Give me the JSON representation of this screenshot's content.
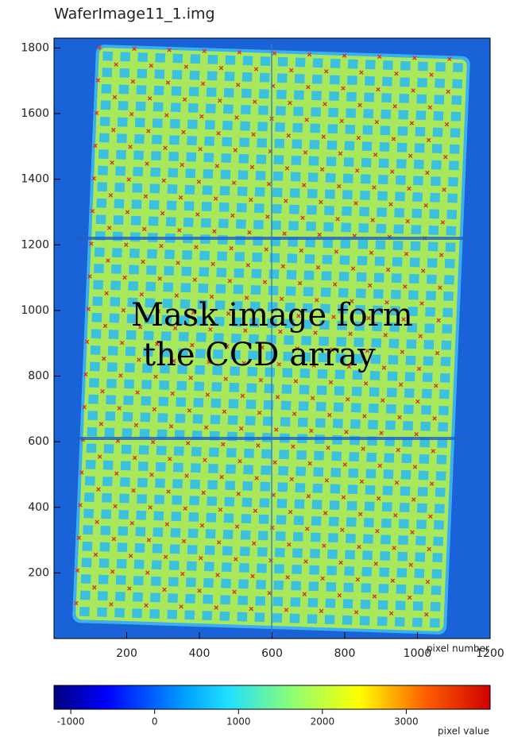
{
  "chart_data": {
    "type": "image",
    "title": "WaferImage11_1.img",
    "xlabel": "pixel number",
    "xlim": [
      0,
      1200
    ],
    "ylim": [
      0,
      1830
    ],
    "xticks": [
      200,
      400,
      600,
      800,
      1000,
      1200
    ],
    "yticks": [
      200,
      400,
      600,
      800,
      1000,
      1200,
      1400,
      1600,
      1800
    ],
    "annotation": [
      "Mask image form",
      "the CCD array"
    ],
    "colorbar": {
      "label": "pixel value",
      "lim": [
        -1200,
        4000
      ],
      "ticks": [
        -1000,
        0,
        1000,
        2000,
        3000
      ]
    }
  }
}
